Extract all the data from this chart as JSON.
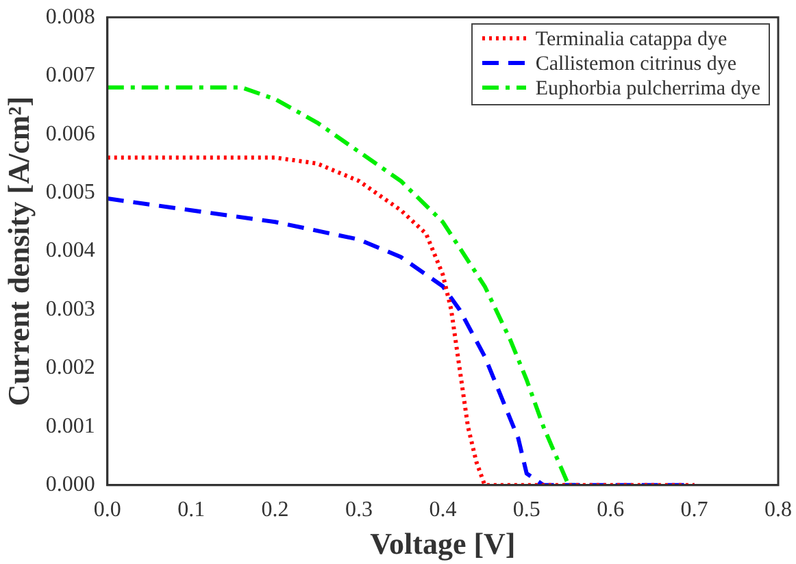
{
  "chart_data": {
    "type": "line",
    "xlabel": "Voltage [V]",
    "ylabel": "Current density [A/cm²]",
    "xlim": [
      0,
      0.8
    ],
    "ylim": [
      0,
      0.008
    ],
    "xticks": [
      {
        "value": 0,
        "label": "0.0"
      },
      {
        "value": 0.1,
        "label": "0.1"
      },
      {
        "value": 0.2,
        "label": "0.2"
      },
      {
        "value": 0.3,
        "label": "0.3"
      },
      {
        "value": 0.4,
        "label": "0.4"
      },
      {
        "value": 0.5,
        "label": "0.5"
      },
      {
        "value": 0.6,
        "label": "0.6"
      },
      {
        "value": 0.7,
        "label": "0.7"
      },
      {
        "value": 0.8,
        "label": "0.8"
      }
    ],
    "yticks": [
      {
        "value": 0,
        "label": "0.000"
      },
      {
        "value": 0.001,
        "label": "0.001"
      },
      {
        "value": 0.002,
        "label": "0.002"
      },
      {
        "value": 0.003,
        "label": "0.003"
      },
      {
        "value": 0.004,
        "label": "0.004"
      },
      {
        "value": 0.005,
        "label": "0.005"
      },
      {
        "value": 0.006,
        "label": "0.006"
      },
      {
        "value": 0.007,
        "label": "0.007"
      },
      {
        "value": 0.008,
        "label": "0.008"
      }
    ],
    "grid": false,
    "legend": "top right",
    "marker": "none",
    "series": [
      {
        "name": "Terminalia catappa dye",
        "color": "#ff0000",
        "line_style": "dotted",
        "x": [
          0,
          0.1,
          0.2,
          0.25,
          0.3,
          0.35,
          0.38,
          0.4,
          0.41,
          0.42,
          0.43,
          0.44,
          0.45,
          0.55,
          0.7
        ],
        "values": [
          0.0056,
          0.0056,
          0.0056,
          0.0055,
          0.0052,
          0.0047,
          0.0043,
          0.0036,
          0.003,
          0.002,
          0.001,
          0.0004,
          0,
          0,
          0
        ]
      },
      {
        "name": "Callistemon citrinus dye",
        "color": "#0000ff",
        "line_style": "dashed",
        "x": [
          0,
          0.1,
          0.2,
          0.3,
          0.35,
          0.4,
          0.42,
          0.45,
          0.47,
          0.49,
          0.5,
          0.52,
          0.6,
          0.7
        ],
        "values": [
          0.0049,
          0.0047,
          0.0045,
          0.0042,
          0.0039,
          0.0034,
          0.003,
          0.0022,
          0.0015,
          0.0008,
          0.0002,
          0,
          0,
          0
        ]
      },
      {
        "name": "Euphorbia pulcherrima dye",
        "color": "#00ee00",
        "line_style": "dashdot",
        "x": [
          0,
          0.1,
          0.16,
          0.2,
          0.25,
          0.3,
          0.35,
          0.4,
          0.45,
          0.48,
          0.5,
          0.52,
          0.55,
          0.56
        ],
        "values": [
          0.0068,
          0.0068,
          0.0068,
          0.0066,
          0.0062,
          0.0057,
          0.0052,
          0.0045,
          0.0034,
          0.0025,
          0.0018,
          0.001,
          0,
          0
        ]
      }
    ]
  }
}
